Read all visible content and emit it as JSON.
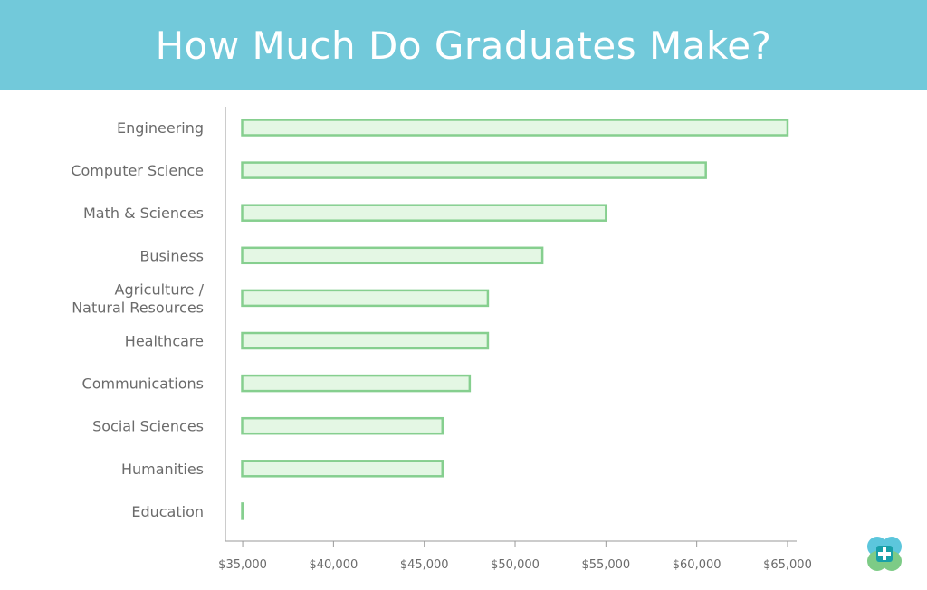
{
  "colors": {
    "header_bg": "#72c9da",
    "bar_fill": "#e4f7e4",
    "bar_stroke": "#86cf8f",
    "axis": "#9a9a9a",
    "text": "#6b6b6b",
    "logo_blue": "#5cc6dc",
    "logo_green": "#7dcb86",
    "logo_teal": "#18a0a8"
  },
  "logo": {
    "icon": "medical-cross-clover-icon"
  },
  "chart_data": {
    "type": "bar",
    "orientation": "horizontal",
    "title": "How Much Do Graduates Make?",
    "categories": [
      "Engineering",
      "Computer Science",
      "Math & Sciences",
      "Business",
      "Agriculture / Natural Resources",
      "Healthcare",
      "Communications",
      "Social Sciences",
      "Humanities",
      "Education"
    ],
    "category_lines": [
      [
        "Engineering"
      ],
      [
        "Computer Science"
      ],
      [
        "Math & Sciences"
      ],
      [
        "Business"
      ],
      [
        "Agriculture /",
        "Natural Resources"
      ],
      [
        "Healthcare"
      ],
      [
        "Communications"
      ],
      [
        "Social Sciences"
      ],
      [
        "Humanities"
      ],
      [
        "Education"
      ]
    ],
    "values": [
      65000,
      60500,
      55000,
      51500,
      48500,
      48500,
      47500,
      46000,
      46000,
      35000
    ],
    "xlim": [
      34000,
      65500
    ],
    "xticks": [
      35000,
      40000,
      45000,
      50000,
      55000,
      60000,
      65000
    ],
    "xtick_labels": [
      "$35,000",
      "$40,000",
      "$45,000",
      "$50,000",
      "$55,000",
      "$60,000",
      "$65,000"
    ],
    "xlabel": "",
    "ylabel": "",
    "grid": false,
    "legend": "none"
  }
}
